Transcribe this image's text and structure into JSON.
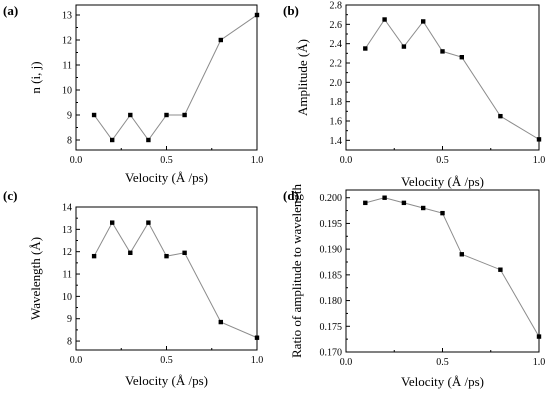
{
  "chart_data": [
    {
      "panel": "(a)",
      "type": "line",
      "xlabel": "Velocity (Å /ps)",
      "ylabel": "n (i, j)",
      "xlim": [
        0.0,
        1.0
      ],
      "ylim": [
        7.6,
        13.4
      ],
      "xticks": [
        "0.0",
        "0.5",
        "1.0"
      ],
      "yticks": [
        "8",
        "9",
        "10",
        "11",
        "12",
        "13"
      ],
      "x": [
        0.1,
        0.2,
        0.3,
        0.4,
        0.5,
        0.6,
        0.8,
        1.0
      ],
      "y": [
        9,
        8,
        9,
        8,
        9,
        9,
        12,
        13
      ],
      "marker": "square",
      "line_color": "#8c8c8c",
      "marker_color": "#000000",
      "grid": false
    },
    {
      "panel": "(b)",
      "type": "line",
      "xlabel": "Velocity (Å /ps)",
      "ylabel": "Amplitude (Å)",
      "xlim": [
        0.0,
        1.0
      ],
      "ylim": [
        1.3,
        2.8
      ],
      "xticks": [
        "0.0",
        "0.5",
        "1.0"
      ],
      "yticks": [
        "1.4",
        "1.6",
        "1.8",
        "2.0",
        "2.2",
        "2.4",
        "2.6",
        "2.8"
      ],
      "x": [
        0.1,
        0.2,
        0.3,
        0.4,
        0.5,
        0.6,
        0.8,
        1.0
      ],
      "y": [
        2.35,
        2.65,
        2.37,
        2.63,
        2.32,
        2.26,
        1.65,
        1.41
      ],
      "marker": "square",
      "line_color": "#8c8c8c",
      "marker_color": "#000000",
      "grid": false
    },
    {
      "panel": "(c)",
      "type": "line",
      "xlabel": "Velocity (Å /ps)",
      "ylabel": "Wavelength (Å)",
      "xlim": [
        0.0,
        1.0
      ],
      "ylim": [
        7.6,
        14.0
      ],
      "xticks": [
        "0.0",
        "0.5",
        "1.0"
      ],
      "yticks": [
        "8",
        "9",
        "10",
        "11",
        "12",
        "13",
        "14"
      ],
      "x": [
        0.1,
        0.2,
        0.3,
        0.4,
        0.5,
        0.6,
        0.8,
        1.0
      ],
      "y": [
        11.8,
        13.3,
        11.95,
        13.3,
        11.8,
        11.95,
        8.85,
        8.15
      ],
      "marker": "square",
      "line_color": "#8c8c8c",
      "marker_color": "#000000",
      "grid": false
    },
    {
      "panel": "(d)",
      "type": "line",
      "xlabel": "Velocity (Å /ps)",
      "ylabel": "Ratio of amplitude to wavelength",
      "xlim": [
        0.0,
        1.0
      ],
      "ylim": [
        0.17,
        0.2015
      ],
      "xticks": [
        "0.0",
        "0.5",
        "1.0"
      ],
      "yticks": [
        "0.170",
        "0.175",
        "0.180",
        "0.185",
        "0.190",
        "0.195",
        "0.200"
      ],
      "x": [
        0.1,
        0.2,
        0.3,
        0.4,
        0.5,
        0.6,
        0.8,
        1.0
      ],
      "y": [
        0.199,
        0.2,
        0.199,
        0.198,
        0.197,
        0.189,
        0.186,
        0.173
      ],
      "marker": "square",
      "line_color": "#8c8c8c",
      "marker_color": "#000000",
      "grid": false
    }
  ]
}
